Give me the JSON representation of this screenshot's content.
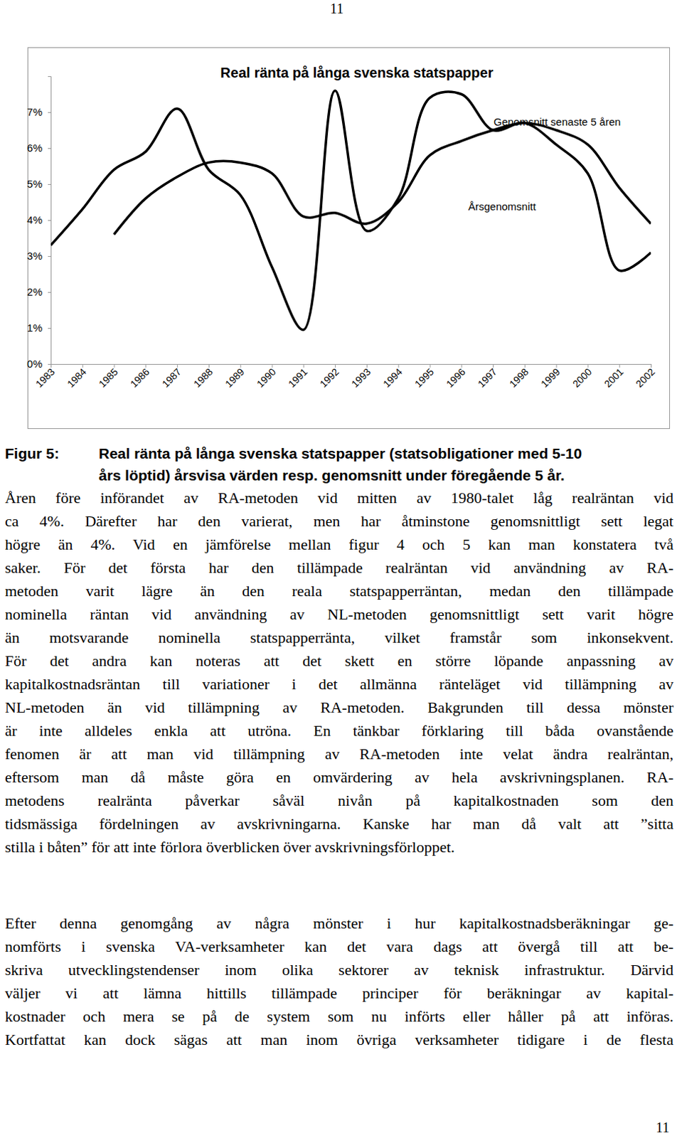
{
  "page_header": "11",
  "chart_data": {
    "type": "line",
    "title": "Real ränta på långa svenska statspapper",
    "categories": [
      "1983",
      "1984",
      "1985",
      "1986",
      "1987",
      "1988",
      "1989",
      "1990",
      "1991",
      "1992",
      "1993",
      "1994",
      "1995",
      "1996",
      "1997",
      "1998",
      "1999",
      "2000",
      "2001",
      "2002"
    ],
    "series": [
      {
        "name": "Årsgenomsnitt",
        "color": "#000000",
        "values": [
          3.3,
          4.3,
          5.4,
          5.9,
          7.1,
          5.4,
          4.7,
          2.7,
          0.95,
          7.6,
          3.7,
          4.6,
          7.4,
          7.5,
          6.5,
          6.7,
          6.1,
          5.3,
          2.6,
          3.1
        ]
      },
      {
        "name": "Genomsnitt senaste 5 åren",
        "color": "#000000",
        "values": [
          null,
          null,
          3.6,
          4.6,
          5.2,
          5.6,
          5.6,
          5.3,
          4.1,
          4.2,
          3.9,
          4.5,
          5.8,
          6.2,
          6.5,
          6.7,
          6.5,
          6.1,
          4.9,
          3.9
        ]
      }
    ],
    "ylim": [
      0,
      8
    ],
    "yticks": [
      {
        "value": 0,
        "label": "0%"
      },
      {
        "value": 1,
        "label": "1%"
      },
      {
        "value": 2,
        "label": "2%"
      },
      {
        "value": 3,
        "label": "3%"
      },
      {
        "value": 4,
        "label": "4%"
      },
      {
        "value": 5,
        "label": "5%"
      },
      {
        "value": 6,
        "label": "6%"
      },
      {
        "value": 7,
        "label": "7%"
      }
    ],
    "grid": false
  },
  "caption": {
    "label": "Figur 5:",
    "lines": [
      "Real ränta på långa svenska statspapper (statsobligationer med 5-10",
      "års löptid) årsvisa värden resp. genomsnitt under föregående 5 år."
    ]
  },
  "paragraphs": [
    [
      "Åren före införandet av RA-metoden vid mitten av 1980-talet låg realräntan vid",
      "ca 4%. Därefter har den varierat, men har åtminstone genomsnittligt sett legat",
      "högre än 4%. Vid en jämförelse mellan figur 4 och 5 kan man konstatera två",
      "saker. För det första har den tillämpade realräntan vid användning av RA-",
      "metoden varit lägre än den reala statspapperräntan, medan den tillämpade",
      "nominella räntan vid användning av NL-metoden genomsnittligt sett varit högre",
      "än motsvarande nominella statspapperränta, vilket framstår som inkonsekvent.",
      "För det andra kan noteras att det skett en större löpande anpassning av",
      "kapitalkostnadsräntan till variationer i det allmänna ränteläget vid tillämpning av",
      "NL-metoden än vid tillämpning av RA-metoden. Bakgrunden till dessa mönster",
      "är inte alldeles enkla att utröna. En tänkbar förklaring till båda ovanstående",
      "fenomen är att man vid tillämpning av RA-metoden inte velat ändra realräntan,",
      "eftersom man då måste göra en omvärdering av hela avskrivningsplanen. RA-",
      "metodens realränta påverkar såväl nivån på kapitalkostnaden som den",
      "tidsmässiga fördelningen av avskrivningarna. Kanske har man då valt att ”sitta",
      "stilla i båten” för att inte förlora överblicken över avskrivningsförloppet."
    ],
    [
      "Efter denna genomgång av några mönster i hur kapitalkostnadsberäkningar ge-",
      "nomförts i svenska VA-verksamheter kan det vara dags att övergå till att be-",
      "skriva utvecklingstendenser inom olika sektorer av teknisk infrastruktur. Därvid",
      "väljer vi att lämna hittills tillämpade principer för beräkningar av kapital-",
      "kostnader och mera se på de system som nu införts eller håller på att införas.",
      "Kortfattat kan dock sägas att man inom övriga verksamheter tidigare i de flesta"
    ]
  ],
  "page_footer": "11"
}
